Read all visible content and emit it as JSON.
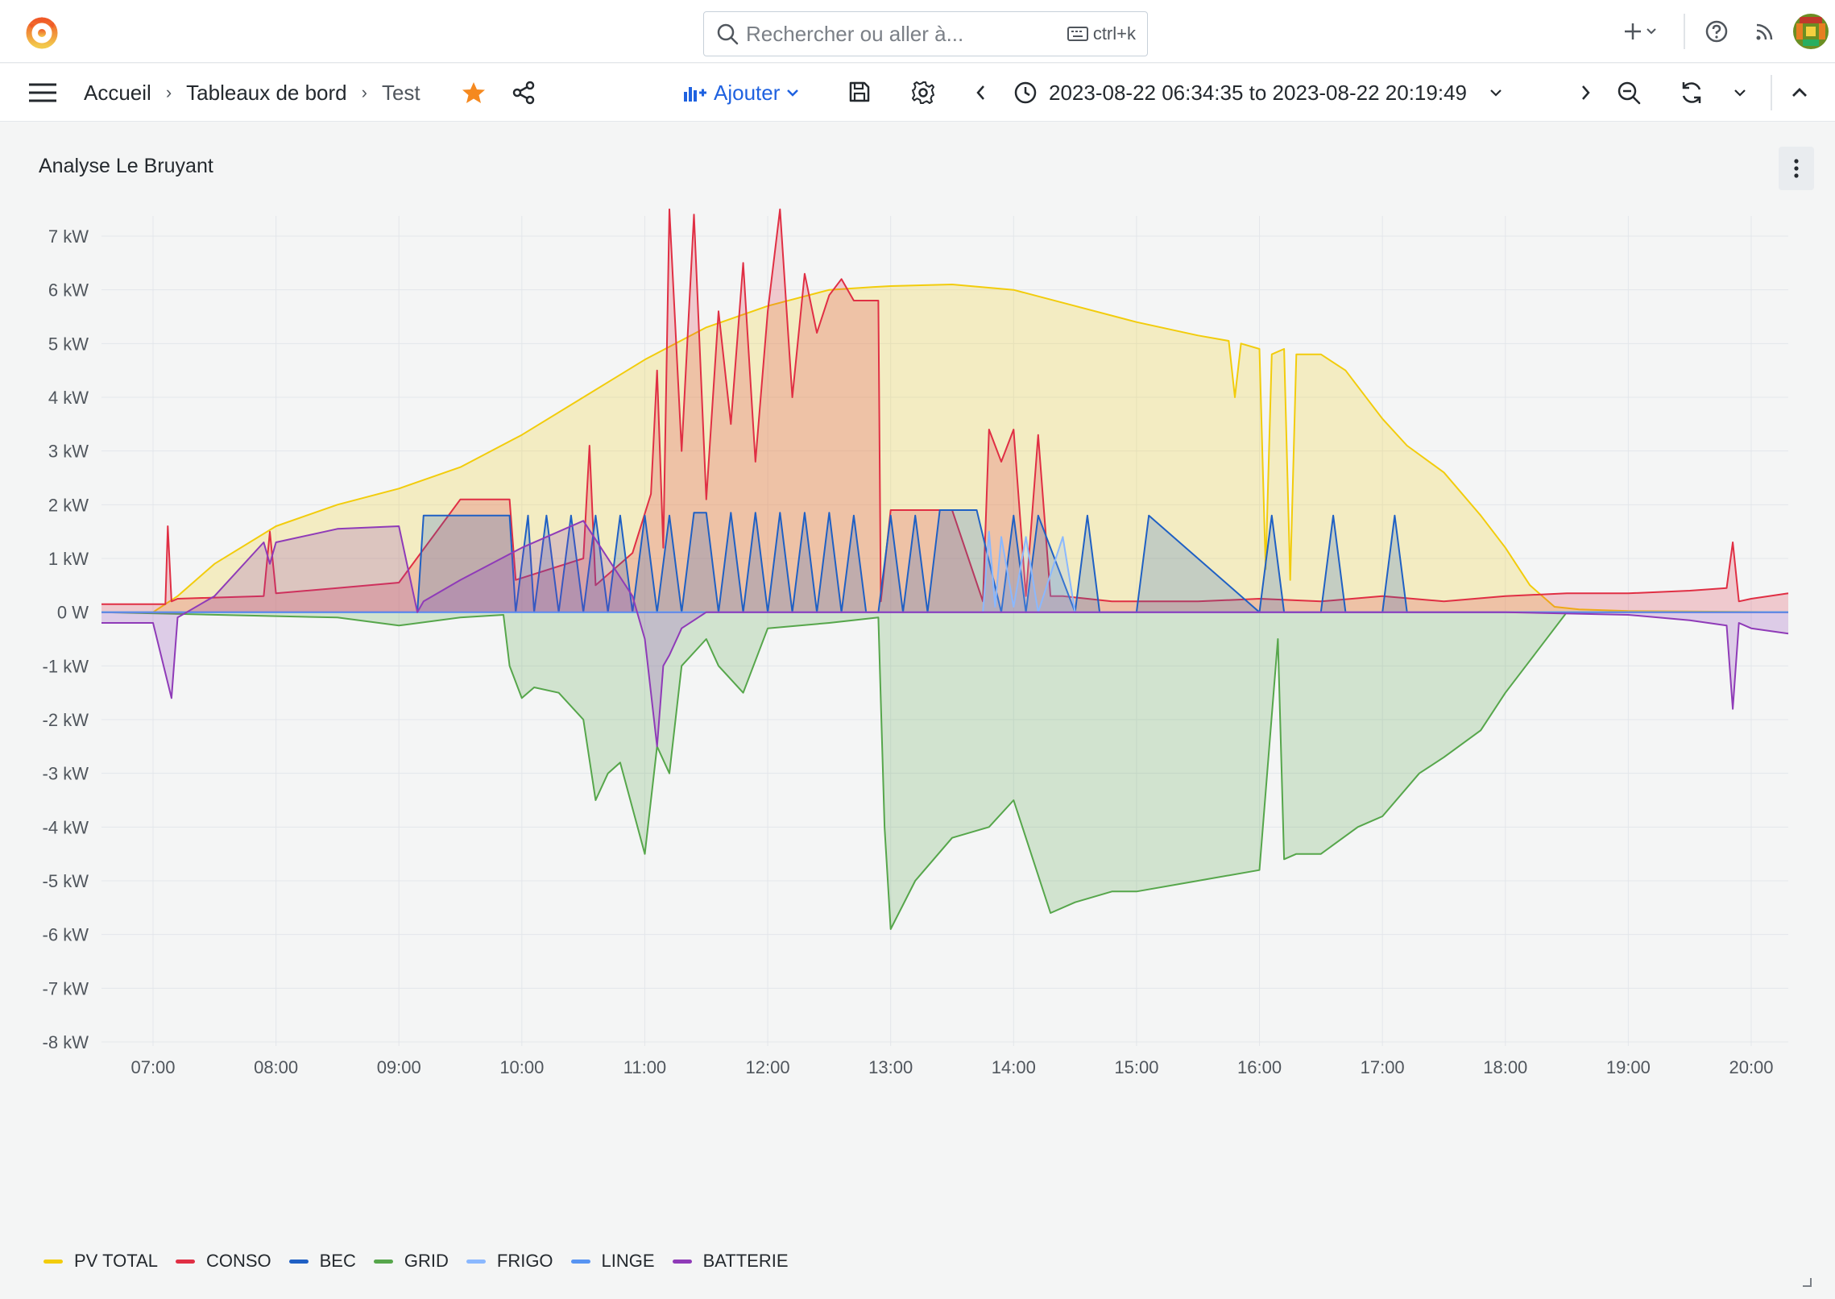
{
  "search": {
    "placeholder": "Rechercher ou aller à...",
    "shortcut": "ctrl+k"
  },
  "breadcrumb": {
    "home": "Accueil",
    "dashboards": "Tableaux de bord",
    "current": "Test"
  },
  "toolbar": {
    "add_label": "Ajouter",
    "time_range": "2023-08-22 06:34:35 to 2023-08-22 20:19:49"
  },
  "panel": {
    "title": "Analyse Le Bruyant"
  },
  "chart_data": {
    "type": "area",
    "unit": "kW",
    "y_ticks": [
      "7 kW",
      "6 kW",
      "5 kW",
      "4 kW",
      "3 kW",
      "2 kW",
      "1 kW",
      "0 W",
      "-1 kW",
      "-2 kW",
      "-3 kW",
      "-4 kW",
      "-5 kW",
      "-6 kW",
      "-7 kW",
      "-8 kW"
    ],
    "x_ticks": [
      "07:00",
      "08:00",
      "09:00",
      "10:00",
      "11:00",
      "12:00",
      "13:00",
      "14:00",
      "15:00",
      "16:00",
      "17:00",
      "18:00",
      "19:00",
      "20:00"
    ],
    "ylim": [
      -8,
      7.5
    ],
    "xlim": [
      6.58,
      20.33
    ],
    "grid": true,
    "legend_position": "bottom",
    "series": [
      {
        "name": "PV TOTAL",
        "color": "#f2cc0c",
        "x": [
          6.58,
          7.0,
          7.2,
          7.5,
          8.0,
          8.5,
          9.0,
          9.5,
          10.0,
          10.5,
          11.0,
          11.5,
          12.0,
          12.5,
          12.85,
          13.0,
          13.5,
          14.0,
          14.5,
          15.0,
          15.5,
          15.75,
          15.8,
          15.85,
          16.0,
          16.05,
          16.1,
          16.2,
          16.25,
          16.3,
          16.5,
          16.7,
          16.9,
          17.0,
          17.2,
          17.5,
          17.8,
          18.0,
          18.2,
          18.4,
          18.6,
          19.0,
          20.33
        ],
        "values": [
          0.0,
          0.0,
          0.3,
          0.9,
          1.6,
          2.0,
          2.3,
          2.7,
          3.3,
          4.0,
          4.7,
          5.3,
          5.7,
          6.0,
          6.05,
          6.07,
          6.1,
          6.0,
          5.7,
          5.4,
          5.15,
          5.05,
          4.0,
          5.0,
          4.9,
          0.8,
          4.8,
          4.9,
          0.6,
          4.8,
          4.8,
          4.5,
          3.9,
          3.6,
          3.1,
          2.6,
          1.8,
          1.2,
          0.5,
          0.1,
          0.05,
          0.02,
          0.0
        ]
      },
      {
        "name": "CONSO",
        "color": "#e02f44",
        "x": [
          6.58,
          7.1,
          7.12,
          7.15,
          7.2,
          7.9,
          7.95,
          8.0,
          8.5,
          9.0,
          9.5,
          9.6,
          9.9,
          9.95,
          10.5,
          10.55,
          10.6,
          10.9,
          11.05,
          11.1,
          11.15,
          11.2,
          11.3,
          11.4,
          11.5,
          11.6,
          11.7,
          11.8,
          11.9,
          12.0,
          12.1,
          12.2,
          12.3,
          12.4,
          12.5,
          12.6,
          12.7,
          12.9,
          12.92,
          13.0,
          13.5,
          13.75,
          13.8,
          13.9,
          14.0,
          14.1,
          14.2,
          14.3,
          14.4,
          14.6,
          14.8,
          15.0,
          15.5,
          16.0,
          16.5,
          17.0,
          17.5,
          18.0,
          18.5,
          19.0,
          19.5,
          19.8,
          19.85,
          19.9,
          20.0,
          20.33
        ],
        "values": [
          0.15,
          0.15,
          1.6,
          0.2,
          0.25,
          0.3,
          1.5,
          0.35,
          0.45,
          0.55,
          2.1,
          2.1,
          2.1,
          0.6,
          1.0,
          3.1,
          0.5,
          1.1,
          2.2,
          4.5,
          1.2,
          7.5,
          3.0,
          7.4,
          2.1,
          5.6,
          3.5,
          6.5,
          2.8,
          5.6,
          7.5,
          4.0,
          6.3,
          5.2,
          5.9,
          6.2,
          5.8,
          5.8,
          0.2,
          1.9,
          1.9,
          0.2,
          3.4,
          2.8,
          3.4,
          0.3,
          3.3,
          0.3,
          0.3,
          0.25,
          0.2,
          0.2,
          0.2,
          0.25,
          0.2,
          0.3,
          0.2,
          0.3,
          0.35,
          0.35,
          0.4,
          0.45,
          1.3,
          0.2,
          0.25,
          0.35
        ]
      },
      {
        "name": "BEC",
        "color": "#1f60c4",
        "x": [
          6.58,
          9.15,
          9.2,
          9.9,
          9.95,
          10.05,
          10.1,
          10.2,
          10.3,
          10.4,
          10.5,
          10.6,
          10.7,
          10.8,
          10.9,
          11.0,
          11.1,
          11.2,
          11.3,
          11.4,
          11.5,
          11.6,
          11.7,
          11.8,
          11.9,
          12.0,
          12.1,
          12.2,
          12.3,
          12.4,
          12.5,
          12.6,
          12.7,
          12.8,
          12.9,
          13.0,
          13.1,
          13.2,
          13.3,
          13.4,
          13.5,
          13.7,
          13.9,
          14.0,
          14.1,
          14.2,
          14.5,
          14.6,
          14.7,
          15.0,
          15.1,
          16.0,
          16.1,
          16.2,
          16.5,
          16.6,
          16.7,
          17.0,
          17.1,
          17.2,
          20.33
        ],
        "values": [
          0.0,
          0.0,
          1.8,
          1.8,
          0.0,
          1.8,
          0.0,
          1.8,
          0.0,
          1.8,
          0.0,
          1.8,
          0.0,
          1.8,
          0.0,
          1.8,
          0.0,
          1.8,
          0.0,
          1.85,
          1.85,
          0.0,
          1.85,
          0.0,
          1.85,
          0.0,
          1.85,
          0.0,
          1.85,
          0.0,
          1.85,
          0.0,
          1.8,
          0.0,
          0.0,
          1.8,
          0.0,
          1.8,
          0.0,
          1.9,
          1.9,
          1.9,
          0.0,
          1.8,
          0.0,
          1.8,
          0.0,
          1.8,
          0.0,
          0.0,
          1.8,
          0.0,
          1.8,
          0.0,
          0.0,
          1.8,
          0.0,
          0.0,
          1.8,
          0.0,
          0.0
        ]
      },
      {
        "name": "GRID",
        "color": "#56a64b",
        "x": [
          6.58,
          8.5,
          9.0,
          9.5,
          9.85,
          9.9,
          10.0,
          10.1,
          10.3,
          10.5,
          10.6,
          10.7,
          10.8,
          11.0,
          11.1,
          11.2,
          11.3,
          11.5,
          11.6,
          11.8,
          12.0,
          12.5,
          12.9,
          12.95,
          13.0,
          13.2,
          13.5,
          13.8,
          14.0,
          14.3,
          14.5,
          14.8,
          15.0,
          15.5,
          16.0,
          16.15,
          16.2,
          16.3,
          16.5,
          16.8,
          17.0,
          17.3,
          17.5,
          17.8,
          18.0,
          18.3,
          18.5,
          20.33
        ],
        "values": [
          0.0,
          -0.1,
          -0.25,
          -0.1,
          -0.05,
          -1.0,
          -1.6,
          -1.4,
          -1.5,
          -2.0,
          -3.5,
          -3.0,
          -2.8,
          -4.5,
          -2.5,
          -3.0,
          -1.0,
          -0.5,
          -1.0,
          -1.5,
          -0.3,
          -0.2,
          -0.1,
          -4.0,
          -5.9,
          -5.0,
          -4.2,
          -4.0,
          -3.5,
          -5.6,
          -5.4,
          -5.2,
          -5.2,
          -5.0,
          -4.8,
          -0.5,
          -4.6,
          -4.5,
          -4.5,
          -4.0,
          -3.8,
          -3.0,
          -2.7,
          -2.2,
          -1.5,
          -0.6,
          0.0,
          0.0
        ]
      },
      {
        "name": "FRIGO",
        "color": "#8ab8ff",
        "x": [
          6.58,
          13.75,
          13.8,
          13.85,
          13.9,
          14.0,
          14.1,
          14.2,
          14.4,
          14.5,
          20.33
        ],
        "values": [
          0.0,
          0.0,
          1.5,
          0.1,
          1.4,
          0.1,
          1.4,
          0.0,
          1.4,
          0.0,
          0.0
        ]
      },
      {
        "name": "LINGE",
        "color": "#5794f2",
        "x": [
          6.58,
          20.33
        ],
        "values": [
          0.0,
          0.0
        ]
      },
      {
        "name": "BATTERIE",
        "color": "#8f3bb8",
        "x": [
          6.58,
          7.0,
          7.15,
          7.2,
          7.5,
          7.9,
          7.95,
          8.0,
          8.5,
          9.0,
          9.15,
          9.2,
          9.5,
          10.0,
          10.5,
          10.9,
          11.0,
          11.1,
          11.15,
          11.2,
          11.3,
          11.5,
          12.0,
          12.5,
          13.0,
          15.0,
          18.0,
          19.0,
          19.5,
          19.8,
          19.85,
          19.9,
          20.0,
          20.33
        ],
        "values": [
          -0.2,
          -0.2,
          -1.6,
          -0.1,
          0.3,
          1.3,
          0.9,
          1.3,
          1.55,
          1.6,
          0.0,
          0.2,
          0.6,
          1.2,
          1.7,
          0.3,
          -0.5,
          -2.5,
          -1.0,
          -0.8,
          -0.3,
          0.0,
          0.0,
          0.0,
          0.0,
          0.0,
          0.0,
          -0.05,
          -0.15,
          -0.25,
          -1.8,
          -0.2,
          -0.3,
          -0.4
        ]
      }
    ]
  }
}
